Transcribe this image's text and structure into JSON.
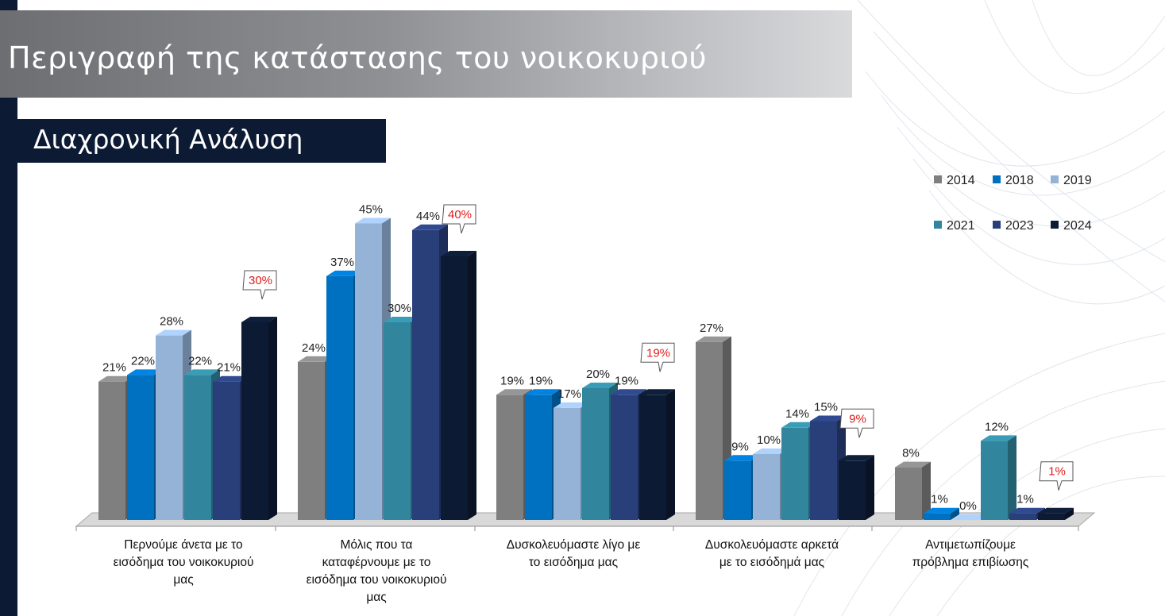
{
  "header": {
    "title": "Περιγραφή της κατάστασης του νοικοκυριού",
    "subtitle": "Διαχρονική Ανάλυση"
  },
  "chart_data": {
    "type": "bar",
    "categories": [
      [
        "Περνούμε άνετα με το",
        "εισόδημα του νοικοκυριού",
        "μας"
      ],
      [
        "Μόλις που τα",
        "καταφέρνουμε με το",
        "εισόδημα του νοικοκυριού",
        "μας"
      ],
      [
        "Δυσκολευόμαστε λίγο με",
        "το εισόδημα μας"
      ],
      [
        "Δυσκολευόμαστε αρκετά",
        "με το εισόδημά μας"
      ],
      [
        "Αντιμετωπίζουμε",
        "πρόβλημα επιβίωσης"
      ]
    ],
    "series": [
      {
        "name": "2014",
        "color": "#7f7f7f",
        "values": [
          21,
          24,
          19,
          27,
          8
        ]
      },
      {
        "name": "2018",
        "color": "#0070c0",
        "values": [
          22,
          37,
          19,
          9,
          1
        ]
      },
      {
        "name": "2019",
        "color": "#95b3d7",
        "values": [
          28,
          45,
          17,
          10,
          0
        ]
      },
      {
        "name": "2021",
        "color": "#31859c",
        "values": [
          22,
          30,
          20,
          14,
          12
        ]
      },
      {
        "name": "2023",
        "color": "#283f7a",
        "values": [
          21,
          44,
          19,
          15,
          1
        ]
      },
      {
        "name": "2024",
        "color": "#0c1a33",
        "values": [
          30,
          40,
          19,
          9,
          1
        ]
      }
    ],
    "value_suffix": "%",
    "highlighted_series": "2024",
    "highlight_color": "#e01b1b",
    "legend_position": "top-right",
    "ylim": [
      0,
      50
    ],
    "style": "3d-bar"
  }
}
